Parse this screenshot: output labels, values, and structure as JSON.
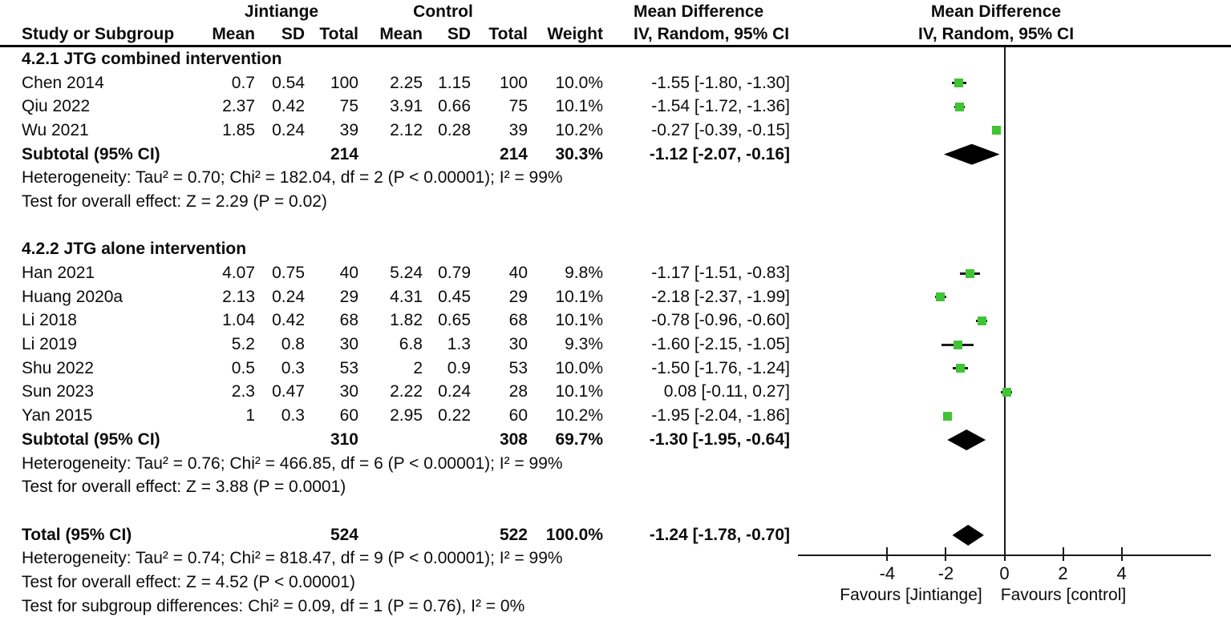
{
  "header": {
    "col_study": "Study or Subgroup",
    "group1": "Jintiange",
    "group2": "Control",
    "col_mean1": "Mean",
    "col_sd1": "SD",
    "col_total1": "Total",
    "col_mean2": "Mean",
    "col_sd2": "SD",
    "col_total2": "Total",
    "col_weight": "Weight",
    "effect_title": "Mean Difference",
    "effect_subtitle": "IV, Random, 95% CI",
    "plot_title": "Mean Difference",
    "plot_subtitle": "IV, Random, 95% CI"
  },
  "table": {
    "groups": [
      {
        "label": "4.2.1 JTG combined intervention",
        "studies": [
          {
            "name": "Chen 2014",
            "mean1": "0.7",
            "sd1": "0.54",
            "n1": "100",
            "mean2": "2.25",
            "sd2": "1.15",
            "n2": "100",
            "weight": "10.0%",
            "ci": "-1.55 [-1.80, -1.30]"
          },
          {
            "name": "Qiu 2022",
            "mean1": "2.37",
            "sd1": "0.42",
            "n1": "75",
            "mean2": "3.91",
            "sd2": "0.66",
            "n2": "75",
            "weight": "10.1%",
            "ci": "-1.54 [-1.72, -1.36]"
          },
          {
            "name": "Wu 2021",
            "mean1": "1.85",
            "sd1": "0.24",
            "n1": "39",
            "mean2": "2.12",
            "sd2": "0.28",
            "n2": "39",
            "weight": "10.2%",
            "ci": "-0.27 [-0.39, -0.15]"
          }
        ],
        "subtotal": {
          "name": "Subtotal (95% CI)",
          "n1": "214",
          "n2": "214",
          "weight": "30.3%",
          "ci": "-1.12 [-2.07, -0.16]"
        },
        "heterogeneity": "Heterogeneity: Tau² = 0.70; Chi² = 182.04, df = 2 (P < 0.00001); I² = 99%",
        "overall_effect": "Test for overall effect: Z = 2.29 (P = 0.02)"
      },
      {
        "label": "4.2.2 JTG alone intervention",
        "studies": [
          {
            "name": "Han 2021",
            "mean1": "4.07",
            "sd1": "0.75",
            "n1": "40",
            "mean2": "5.24",
            "sd2": "0.79",
            "n2": "40",
            "weight": "9.8%",
            "ci": "-1.17 [-1.51, -0.83]"
          },
          {
            "name": "Huang 2020a",
            "mean1": "2.13",
            "sd1": "0.24",
            "n1": "29",
            "mean2": "4.31",
            "sd2": "0.45",
            "n2": "29",
            "weight": "10.1%",
            "ci": "-2.18 [-2.37, -1.99]"
          },
          {
            "name": "Li 2018",
            "mean1": "1.04",
            "sd1": "0.42",
            "n1": "68",
            "mean2": "1.82",
            "sd2": "0.65",
            "n2": "68",
            "weight": "10.1%",
            "ci": "-0.78 [-0.96, -0.60]"
          },
          {
            "name": "Li 2019",
            "mean1": "5.2",
            "sd1": "0.8",
            "n1": "30",
            "mean2": "6.8",
            "sd2": "1.3",
            "n2": "30",
            "weight": "9.3%",
            "ci": "-1.60 [-2.15, -1.05]"
          },
          {
            "name": "Shu 2022",
            "mean1": "0.5",
            "sd1": "0.3",
            "n1": "53",
            "mean2": "2",
            "sd2": "0.9",
            "n2": "53",
            "weight": "10.0%",
            "ci": "-1.50 [-1.76, -1.24]"
          },
          {
            "name": "Sun 2023",
            "mean1": "2.3",
            "sd1": "0.47",
            "n1": "30",
            "mean2": "2.22",
            "sd2": "0.24",
            "n2": "28",
            "weight": "10.1%",
            "ci": "0.08 [-0.11, 0.27]"
          },
          {
            "name": "Yan 2015",
            "mean1": "1",
            "sd1": "0.3",
            "n1": "60",
            "mean2": "2.95",
            "sd2": "0.22",
            "n2": "60",
            "weight": "10.2%",
            "ci": "-1.95 [-2.04, -1.86]"
          }
        ],
        "subtotal": {
          "name": "Subtotal (95% CI)",
          "n1": "310",
          "n2": "308",
          "weight": "69.7%",
          "ci": "-1.30 [-1.95, -0.64]"
        },
        "heterogeneity": "Heterogeneity: Tau² = 0.76; Chi² = 466.85, df = 6 (P < 0.00001); I² = 99%",
        "overall_effect": "Test for overall effect: Z = 3.88 (P = 0.0001)"
      }
    ],
    "total": {
      "name": "Total (95% CI)",
      "n1": "524",
      "n2": "522",
      "weight": "100.0%",
      "ci": "-1.24 [-1.78, -0.70]"
    },
    "total_heterogeneity": "Heterogeneity: Tau² = 0.74; Chi² = 818.47, df = 9 (P < 0.00001); I² = 99%",
    "total_overall_effect": "Test for overall effect: Z = 4.52 (P < 0.00001)",
    "subgroup_differences": "Test for subgroup differences: Chi² = 0.09, df = 1 (P = 0.76), I² = 0%"
  },
  "chart_data": {
    "type": "forest",
    "effect_measure": "Mean Difference (IV, Random, 95% CI)",
    "xlim": [
      -7.05,
      7.05
    ],
    "ticks": [
      -4,
      -2,
      0,
      2,
      4
    ],
    "zero_line": 0,
    "favours_left": "Favours [Jintiange]",
    "favours_right": "Favours [control]",
    "marker_color": "#3fc435",
    "diamond_color": "#000000",
    "points": [
      {
        "name": "Chen 2014",
        "est": -1.55,
        "lo": -1.8,
        "hi": -1.3,
        "weight_pct": 10.0
      },
      {
        "name": "Qiu 2022",
        "est": -1.54,
        "lo": -1.72,
        "hi": -1.36,
        "weight_pct": 10.1
      },
      {
        "name": "Wu 2021",
        "est": -0.27,
        "lo": -0.39,
        "hi": -0.15,
        "weight_pct": 10.2
      },
      {
        "name": "Han 2021",
        "est": -1.17,
        "lo": -1.51,
        "hi": -0.83,
        "weight_pct": 9.8
      },
      {
        "name": "Huang 2020a",
        "est": -2.18,
        "lo": -2.37,
        "hi": -1.99,
        "weight_pct": 10.1
      },
      {
        "name": "Li 2018",
        "est": -0.78,
        "lo": -0.96,
        "hi": -0.6,
        "weight_pct": 10.1
      },
      {
        "name": "Li 2019",
        "est": -1.6,
        "lo": -2.15,
        "hi": -1.05,
        "weight_pct": 9.3
      },
      {
        "name": "Shu 2022",
        "est": -1.5,
        "lo": -1.76,
        "hi": -1.24,
        "weight_pct": 10.0
      },
      {
        "name": "Sun 2023",
        "est": 0.08,
        "lo": -0.11,
        "hi": 0.27,
        "weight_pct": 10.1
      },
      {
        "name": "Yan 2015",
        "est": -1.95,
        "lo": -2.04,
        "hi": -1.86,
        "weight_pct": 10.2
      }
    ],
    "diamonds": [
      {
        "name": "Subtotal 4.2.1",
        "est": -1.12,
        "lo": -2.07,
        "hi": -0.16
      },
      {
        "name": "Subtotal 4.2.2",
        "est": -1.3,
        "lo": -1.95,
        "hi": -0.64
      },
      {
        "name": "Total",
        "est": -1.24,
        "lo": -1.78,
        "hi": -0.7
      }
    ]
  }
}
